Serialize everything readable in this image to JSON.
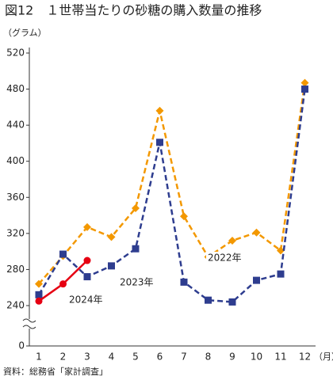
{
  "chart_data": {
    "type": "line",
    "title": "図12　１世帯当たりの砂糖の購入数量の推移",
    "y_unit": "（グラム）",
    "x_unit": "（月）",
    "source": "資料：総務省「家計調査」",
    "categories": [
      "1",
      "2",
      "3",
      "4",
      "5",
      "6",
      "7",
      "8",
      "9",
      "10",
      "11",
      "12"
    ],
    "series": [
      {
        "name": "2022年",
        "color": "#f39800",
        "dashed": true,
        "marker": "diamond",
        "values": [
          264,
          295,
          327,
          316,
          348,
          456,
          339,
          294,
          312,
          321,
          301,
          487
        ]
      },
      {
        "name": "2023年",
        "color": "#2e3d8f",
        "dashed": true,
        "marker": "square",
        "values": [
          252,
          297,
          272,
          284,
          303,
          421,
          266,
          246,
          244,
          268,
          275,
          480
        ]
      },
      {
        "name": "2024年",
        "color": "#e60012",
        "dashed": false,
        "marker": "circle",
        "values": [
          245,
          264,
          290,
          null,
          null,
          null,
          null,
          null,
          null,
          null,
          null,
          null
        ]
      }
    ],
    "ylim": [
      0,
      520
    ],
    "yticks": [
      0,
      240,
      280,
      320,
      360,
      400,
      440,
      480,
      520
    ],
    "axis_break": true,
    "grid": false
  }
}
